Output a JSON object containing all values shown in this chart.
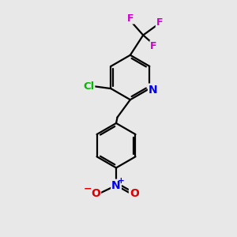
{
  "background_color": "#e8e8e8",
  "bond_color": "#000000",
  "bond_width": 1.6,
  "atom_colors": {
    "N_pyridine": "#0000ee",
    "N_nitro": "#0000ee",
    "Cl": "#00bb00",
    "F": "#cc00cc",
    "O": "#dd0000",
    "C": "#000000"
  },
  "figsize": [
    3.0,
    3.0
  ],
  "dpi": 100
}
